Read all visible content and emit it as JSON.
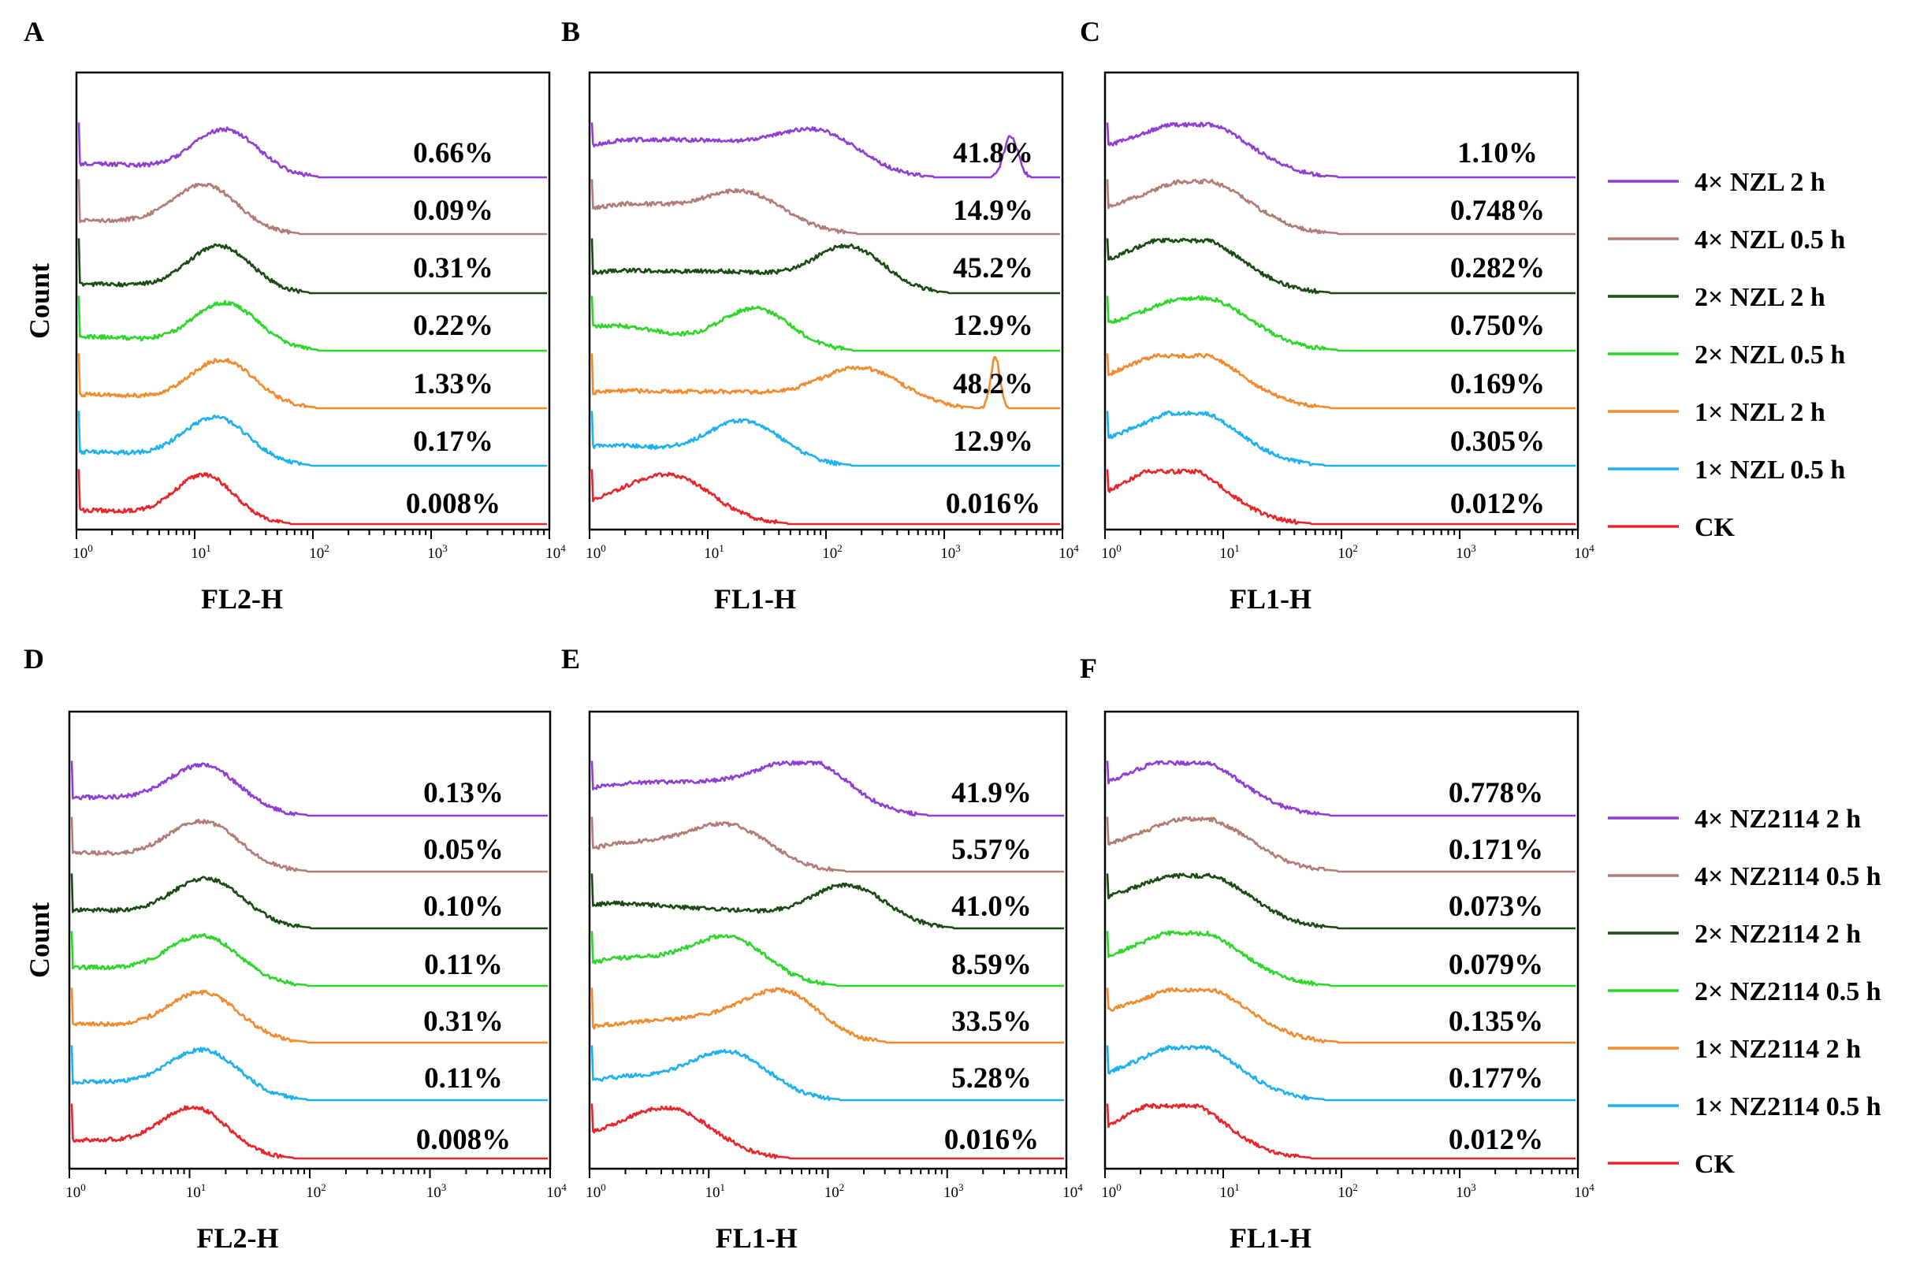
{
  "colors": {
    "4x_2h": "#8e3fd1",
    "4x_05h": "#b07c78",
    "2x_2h": "#1c4a14",
    "2x_05h": "#2ed62a",
    "1x_2h": "#f28a2e",
    "1x_05h": "#1fb0ef",
    "ck": "#e8262a"
  },
  "y_axis_label": "Count",
  "x_ticks": [
    "10",
    "10",
    "10",
    "10",
    "10"
  ],
  "x_tick_exponents": [
    "0",
    "1",
    "2",
    "3",
    "4"
  ],
  "legend_top": {
    "items": [
      {
        "label": "4× NZL 2 h",
        "color_key": "4x_2h"
      },
      {
        "label": "4×  NZL 0.5 h",
        "color_key": "4x_05h"
      },
      {
        "label": "2×  NZL 2 h",
        "color_key": "2x_2h"
      },
      {
        "label": "2×  NZL 0.5 h",
        "color_key": "2x_05h"
      },
      {
        "label": "1×  NZL 2 h",
        "color_key": "1x_2h"
      },
      {
        "label": "1×  NZL 0.5 h",
        "color_key": "1x_05h"
      },
      {
        "label": "CK",
        "color_key": "ck"
      }
    ]
  },
  "legend_bottom": {
    "items": [
      {
        "label": "4× NZ2114 2 h",
        "color_key": "4x_2h"
      },
      {
        "label": "4× NZ2114 0.5 h",
        "color_key": "4x_05h"
      },
      {
        "label": "2× NZ2114 2 h",
        "color_key": "2x_2h"
      },
      {
        "label": "2× NZ2114 0.5 h",
        "color_key": "2x_05h"
      },
      {
        "label": "1× NZ2114 2 h",
        "color_key": "1x_2h"
      },
      {
        "label": "1× NZ2114 0.5 h",
        "color_key": "1x_05h"
      },
      {
        "label": "CK",
        "color_key": "ck"
      }
    ]
  },
  "chart_data": [
    {
      "panel": "A",
      "type": "line",
      "xlabel": "FL2-H",
      "ylabel": "Count",
      "xscale": "log",
      "xlim": [
        1,
        10000
      ],
      "series": [
        {
          "name": "4× NZL 2 h",
          "percent": "0.66%",
          "peaks": [
            [
              18,
              1.0,
              0.28
            ],
            [
              1.3,
              0.3,
              0.6
            ]
          ],
          "tail": 0
        },
        {
          "name": "4×  NZL 0.5 h",
          "percent": "0.09%",
          "peaks": [
            [
              12,
              1.0,
              0.28
            ],
            [
              1.3,
              0.3,
              0.6
            ]
          ],
          "tail": 0
        },
        {
          "name": "2×  NZL 2 h",
          "percent": "0.31%",
          "peaks": [
            [
              16,
              1.0,
              0.27
            ],
            [
              1.3,
              0.2,
              0.6
            ]
          ],
          "tail": 0
        },
        {
          "name": "2×  NZL 0.5 h",
          "percent": "0.22%",
          "peaks": [
            [
              18,
              1.0,
              0.28
            ],
            [
              1.3,
              0.3,
              0.6
            ]
          ],
          "tail": 0
        },
        {
          "name": "1×  NZL 2 h",
          "percent": "1.33%",
          "peaks": [
            [
              17,
              1.0,
              0.28
            ],
            [
              1.3,
              0.3,
              0.6
            ]
          ],
          "tail": 0
        },
        {
          "name": "1×  NZL 0.5 h",
          "percent": "0.17%",
          "peaks": [
            [
              15,
              1.0,
              0.28
            ],
            [
              1.3,
              0.3,
              0.6
            ]
          ],
          "tail": 0
        },
        {
          "name": "CK",
          "percent": "0.008%",
          "peaks": [
            [
              12,
              1.0,
              0.25
            ],
            [
              1.3,
              0.3,
              0.6
            ]
          ],
          "tail": 0
        }
      ]
    },
    {
      "panel": "B",
      "type": "line",
      "xlabel": "FL1-H",
      "ylabel": "Count",
      "xscale": "log",
      "xlim": [
        1,
        10000
      ],
      "series": [
        {
          "name": "4× NZL 2 h",
          "percent": "41.8%",
          "peaks": [
            [
              1.5,
              0.7,
              0.55
            ],
            [
              15,
              0.6,
              0.5
            ],
            [
              90,
              0.85,
              0.35
            ],
            [
              3800,
              0.9,
              0.06
            ]
          ],
          "tail": 0
        },
        {
          "name": "4×  NZL 0.5 h",
          "percent": "14.9%",
          "peaks": [
            [
              2,
              0.65,
              0.5
            ],
            [
              20,
              0.85,
              0.35
            ]
          ],
          "tail": 0
        },
        {
          "name": "2×  NZL 2 h",
          "percent": "45.2%",
          "peaks": [
            [
              1.5,
              0.45,
              0.55
            ],
            [
              20,
              0.4,
              0.5
            ],
            [
              160,
              0.95,
              0.3
            ]
          ],
          "tail": 0
        },
        {
          "name": "2×  NZL 0.5 h",
          "percent": "12.9%",
          "peaks": [
            [
              1.5,
              0.55,
              0.5
            ],
            [
              25,
              0.9,
              0.3
            ]
          ],
          "tail": 0
        },
        {
          "name": "1×  NZL 2 h",
          "percent": "48.2%",
          "peaks": [
            [
              1.5,
              0.35,
              0.55
            ],
            [
              20,
              0.3,
              0.5
            ],
            [
              200,
              0.85,
              0.35
            ],
            [
              2800,
              1.1,
              0.04
            ]
          ],
          "tail": 0
        },
        {
          "name": "1×  NZL 0.5 h",
          "percent": "12.9%",
          "peaks": [
            [
              1.5,
              0.45,
              0.5
            ],
            [
              20,
              0.95,
              0.33
            ]
          ],
          "tail": 0
        },
        {
          "name": "CK",
          "percent": "0.016%",
          "peaks": [
            [
              5,
              0.95,
              0.35
            ],
            [
              1.2,
              0.4,
              0.4
            ]
          ],
          "tail": 0
        }
      ]
    },
    {
      "panel": "C",
      "type": "line",
      "xlabel": "FL1-H",
      "ylabel": "Count",
      "xscale": "log",
      "xlim": [
        1,
        10000
      ],
      "series": [
        {
          "name": "4× NZL 2 h",
          "percent": "1.10%",
          "peaks": [
            [
              7,
              1.0,
              0.4
            ],
            [
              1.3,
              0.6,
              0.5
            ]
          ],
          "tail": 0
        },
        {
          "name": "4×  NZL 0.5 h",
          "percent": "0.748%",
          "peaks": [
            [
              7,
              1.0,
              0.4
            ],
            [
              1.3,
              0.5,
              0.5
            ]
          ],
          "tail": 0
        },
        {
          "name": "2×  NZL 2 h",
          "percent": "0.282%",
          "peaks": [
            [
              6,
              1.0,
              0.4
            ],
            [
              1.3,
              0.6,
              0.5
            ]
          ],
          "tail": 0
        },
        {
          "name": "2×  NZL 0.5 h",
          "percent": "0.750%",
          "peaks": [
            [
              7,
              1.0,
              0.4
            ],
            [
              1.3,
              0.5,
              0.5
            ]
          ],
          "tail": 0
        },
        {
          "name": "1×  NZL 2 h",
          "percent": "0.169%",
          "peaks": [
            [
              6,
              1.0,
              0.4
            ],
            [
              1.3,
              0.6,
              0.5
            ]
          ],
          "tail": 0
        },
        {
          "name": "1×  NZL 0.5 h",
          "percent": "0.305%",
          "peaks": [
            [
              6,
              1.0,
              0.38
            ],
            [
              1.3,
              0.5,
              0.5
            ]
          ],
          "tail": 0
        },
        {
          "name": "CK",
          "percent": "0.012%",
          "peaks": [
            [
              4.5,
              1.0,
              0.38
            ],
            [
              1.3,
              0.5,
              0.5
            ]
          ],
          "tail": 0
        }
      ]
    },
    {
      "panel": "D",
      "type": "line",
      "xlabel": "FL2-H",
      "ylabel": "Count",
      "xscale": "log",
      "xlim": [
        1,
        10000
      ],
      "series": [
        {
          "name": "4× NZ2114 2 h",
          "percent": "0.13%",
          "peaks": [
            [
              13,
              1.0,
              0.3
            ],
            [
              1.3,
              0.4,
              0.6
            ]
          ],
          "tail": 0
        },
        {
          "name": "4× NZ2114 0.5 h",
          "percent": "0.05%",
          "peaks": [
            [
              13,
              1.0,
              0.3
            ],
            [
              1.3,
              0.4,
              0.6
            ]
          ],
          "tail": 0
        },
        {
          "name": "2× NZ2114 2 h",
          "percent": "0.10%",
          "peaks": [
            [
              14,
              1.0,
              0.3
            ],
            [
              1.3,
              0.4,
              0.6
            ]
          ],
          "tail": 0
        },
        {
          "name": "2× NZ2114 0.5 h",
          "percent": "0.11%",
          "peaks": [
            [
              13,
              1.0,
              0.3
            ],
            [
              1.3,
              0.4,
              0.6
            ]
          ],
          "tail": 0
        },
        {
          "name": "1× NZ2114 2 h",
          "percent": "0.31%",
          "peaks": [
            [
              13,
              1.0,
              0.3
            ],
            [
              1.3,
              0.4,
              0.6
            ]
          ],
          "tail": 0
        },
        {
          "name": "1× NZ2114 0.5 h",
          "percent": "0.11%",
          "peaks": [
            [
              13,
              1.0,
              0.3
            ],
            [
              1.3,
              0.4,
              0.6
            ]
          ],
          "tail": 0
        },
        {
          "name": "CK",
          "percent": "0.008%",
          "peaks": [
            [
              11,
              1.0,
              0.28
            ],
            [
              1.3,
              0.4,
              0.6
            ]
          ],
          "tail": 0
        }
      ]
    },
    {
      "panel": "E",
      "type": "line",
      "xlabel": "FL1-H",
      "ylabel": "Count",
      "xscale": "log",
      "xlim": [
        1,
        10000
      ],
      "series": [
        {
          "name": "4× NZ2114 2 h",
          "percent": "41.9%",
          "peaks": [
            [
              1.5,
              0.6,
              0.55
            ],
            [
              15,
              0.55,
              0.5
            ],
            [
              70,
              1.0,
              0.35
            ]
          ],
          "tail": 0
        },
        {
          "name": "4× NZ2114 0.5 h",
          "percent": "5.57%",
          "peaks": [
            [
              2,
              0.6,
              0.5
            ],
            [
              15,
              0.9,
              0.35
            ]
          ],
          "tail": 0
        },
        {
          "name": "2× NZ2114 2 h",
          "percent": "41.0%",
          "peaks": [
            [
              1.3,
              0.5,
              0.5
            ],
            [
              15,
              0.35,
              0.5
            ],
            [
              150,
              0.9,
              0.32
            ]
          ],
          "tail": 0
        },
        {
          "name": "2× NZ2114 0.5 h",
          "percent": "8.59%",
          "peaks": [
            [
              2,
              0.6,
              0.5
            ],
            [
              15,
              0.95,
              0.32
            ]
          ],
          "tail": 0
        },
        {
          "name": "1× NZ2114 2 h",
          "percent": "33.5%",
          "peaks": [
            [
              2,
              0.4,
              0.5
            ],
            [
              15,
              0.45,
              0.4
            ],
            [
              45,
              0.9,
              0.3
            ]
          ],
          "tail": 0
        },
        {
          "name": "1× NZ2114 0.5 h",
          "percent": "5.28%",
          "peaks": [
            [
              2,
              0.5,
              0.5
            ],
            [
              15,
              0.95,
              0.33
            ]
          ],
          "tail": 0
        },
        {
          "name": "CK",
          "percent": "0.016%",
          "peaks": [
            [
              5,
              0.95,
              0.35
            ],
            [
              1.2,
              0.45,
              0.4
            ]
          ],
          "tail": 0
        }
      ]
    },
    {
      "panel": "F",
      "type": "line",
      "xlabel": "FL1-H",
      "ylabel": "Count",
      "xscale": "log",
      "xlim": [
        1,
        10000
      ],
      "series": [
        {
          "name": "4× NZ2114 2 h",
          "percent": "0.778%",
          "peaks": [
            [
              6,
              1.0,
              0.4
            ],
            [
              1.3,
              0.6,
              0.5
            ]
          ],
          "tail": 0
        },
        {
          "name": "4× NZ2114 0.5 h",
          "percent": "0.171%",
          "peaks": [
            [
              7,
              1.0,
              0.4
            ],
            [
              1.3,
              0.5,
              0.5
            ]
          ],
          "tail": 0
        },
        {
          "name": "2× NZ2114 2 h",
          "percent": "0.073%",
          "peaks": [
            [
              7,
              1.0,
              0.4
            ],
            [
              1.3,
              0.6,
              0.5
            ]
          ],
          "tail": 0
        },
        {
          "name": "2× NZ2114 0.5 h",
          "percent": "0.079%",
          "peaks": [
            [
              6,
              1.0,
              0.4
            ],
            [
              1.3,
              0.5,
              0.5
            ]
          ],
          "tail": 0
        },
        {
          "name": "1× NZ2114 2 h",
          "percent": "0.135%",
          "peaks": [
            [
              7,
              1.0,
              0.4
            ],
            [
              1.3,
              0.6,
              0.5
            ]
          ],
          "tail": 0
        },
        {
          "name": "1× NZ2114 0.5 h",
          "percent": "0.177%",
          "peaks": [
            [
              6,
              1.0,
              0.38
            ],
            [
              1.3,
              0.5,
              0.5
            ]
          ],
          "tail": 0
        },
        {
          "name": "CK",
          "percent": "0.012%",
          "peaks": [
            [
              4.5,
              1.0,
              0.38
            ],
            [
              1.3,
              0.5,
              0.5
            ]
          ],
          "tail": 0
        }
      ]
    }
  ]
}
